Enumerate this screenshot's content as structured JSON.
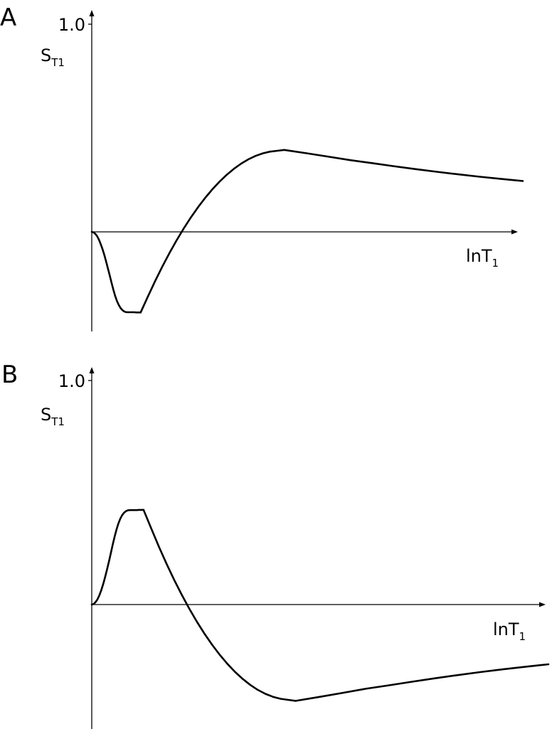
{
  "chart_data": [
    {
      "type": "line",
      "panel": "A",
      "ytick": "1.0",
      "ylabel": {
        "main": "S",
        "sub": "T1"
      },
      "xlabel": {
        "main": "lnT",
        "sub": "1"
      },
      "ylim": [
        -0.51,
        1.1
      ],
      "segments": [
        {
          "x": [
            0.0,
            0.05,
            0.1,
            0.15,
            0.2,
            0.25,
            0.3,
            0.35,
            0.4,
            0.45,
            0.5,
            0.55,
            0.6,
            0.65,
            0.7,
            0.75,
            0.8,
            0.85,
            0.9,
            0.95,
            1.0,
            1.06,
            1.12,
            1.18,
            1.24,
            1.3,
            1.36
          ],
          "y": [
            0.0,
            -0.003,
            -0.012,
            -0.026,
            -0.046,
            -0.072,
            -0.102,
            -0.136,
            -0.174,
            -0.214,
            -0.256,
            -0.298,
            -0.338,
            -0.374,
            -0.404,
            -0.428,
            -0.446,
            -0.458,
            -0.466,
            -0.47,
            -0.471,
            -0.471,
            -0.471,
            -0.471,
            -0.472,
            -0.472,
            -0.472
          ]
        },
        {
          "x": [
            1.36,
            1.56,
            1.76,
            1.96,
            2.16,
            2.36,
            2.56,
            2.76,
            2.96,
            3.16,
            3.36,
            3.56,
            3.76,
            3.96,
            4.16,
            4.36,
            4.56,
            4.76,
            4.96,
            5.16,
            5.36
          ],
          "y": [
            -0.472,
            -0.38,
            -0.29,
            -0.205,
            -0.125,
            -0.05,
            0.02,
            0.085,
            0.145,
            0.2,
            0.25,
            0.295,
            0.335,
            0.37,
            0.4,
            0.425,
            0.445,
            0.46,
            0.47,
            0.475,
            0.48
          ]
        },
        {
          "x": [
            5.36,
            6.0,
            6.6,
            7.2,
            7.8,
            8.4,
            9.0,
            9.6,
            10.2,
            10.8,
            11.4,
            12.0
          ],
          "y": [
            0.48,
            0.46,
            0.44,
            0.42,
            0.403,
            0.385,
            0.368,
            0.352,
            0.337,
            0.323,
            0.31,
            0.298
          ]
        }
      ]
    },
    {
      "type": "line",
      "panel": "B",
      "ytick": "1.0",
      "ylabel": {
        "main": "S",
        "sub": "T1"
      },
      "xlabel": {
        "main": "lnT",
        "sub": "1"
      },
      "ylim": [
        -0.51,
        1.1
      ],
      "segments": [
        {
          "x": [
            0.0,
            0.05,
            0.1,
            0.15,
            0.2,
            0.25,
            0.3,
            0.35,
            0.4,
            0.45,
            0.5,
            0.55,
            0.6,
            0.65,
            0.7,
            0.75,
            0.8,
            0.85,
            0.9,
            0.95,
            1.0,
            1.06,
            1.12,
            1.18,
            1.24,
            1.3,
            1.36
          ],
          "y": [
            0.0,
            0.003,
            0.012,
            0.026,
            0.046,
            0.072,
            0.102,
            0.136,
            0.174,
            0.214,
            0.256,
            0.298,
            0.338,
            0.374,
            0.404,
            0.428,
            0.446,
            0.458,
            0.466,
            0.47,
            0.471,
            0.471,
            0.471,
            0.471,
            0.472,
            0.472,
            0.472
          ]
        },
        {
          "x": [
            1.36,
            1.56,
            1.76,
            1.96,
            2.16,
            2.36,
            2.56,
            2.76,
            2.96,
            3.16,
            3.36,
            3.56,
            3.76,
            3.96,
            4.16,
            4.36,
            4.56,
            4.76,
            4.96,
            5.16,
            5.36
          ],
          "y": [
            0.472,
            0.38,
            0.29,
            0.205,
            0.125,
            0.05,
            -0.02,
            -0.085,
            -0.145,
            -0.2,
            -0.25,
            -0.295,
            -0.335,
            -0.37,
            -0.4,
            -0.425,
            -0.445,
            -0.46,
            -0.47,
            -0.475,
            -0.48
          ]
        },
        {
          "x": [
            5.36,
            6.0,
            6.6,
            7.2,
            7.8,
            8.4,
            9.0,
            9.6,
            10.2,
            10.8,
            11.4,
            12.0
          ],
          "y": [
            -0.48,
            -0.46,
            -0.44,
            -0.42,
            -0.403,
            -0.385,
            -0.368,
            -0.352,
            -0.337,
            -0.323,
            -0.31,
            -0.298
          ]
        }
      ]
    }
  ]
}
